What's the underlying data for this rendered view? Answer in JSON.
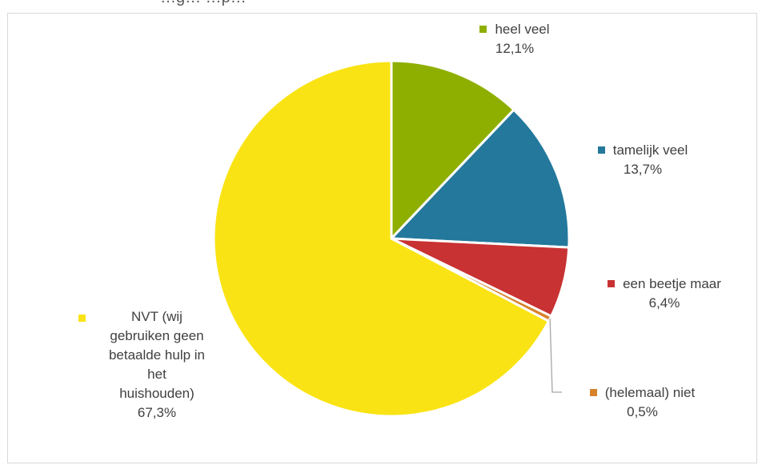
{
  "chart_data": {
    "type": "pie",
    "title_fragment": "…g…                 …p…",
    "slices": [
      {
        "label": "heel veel",
        "value": 12.1,
        "value_label": "12,1%",
        "color": "#8faf00"
      },
      {
        "label": "tamelijk veel",
        "value": 13.7,
        "value_label": "13,7%",
        "color": "#23789c"
      },
      {
        "label": "een beetje maar",
        "value": 6.4,
        "value_label": "6,4%",
        "color": "#c83232"
      },
      {
        "label": "(helemaal) niet",
        "value": 0.5,
        "value_label": "0,5%",
        "color": "#d7832c"
      },
      {
        "label": "NVT (wij gebruiken geen betaalde hulp in het huishouden)",
        "label_lines": [
          "NVT (wij",
          "gebruiken geen",
          "betaalde hulp in",
          "het",
          "huishouden)"
        ],
        "value": 67.3,
        "value_label": "67,3%",
        "color": "#fae314"
      }
    ],
    "start_angle": "12 o'clock",
    "direction": "clockwise",
    "legend": "none",
    "data_labels": "category name and percentage"
  }
}
